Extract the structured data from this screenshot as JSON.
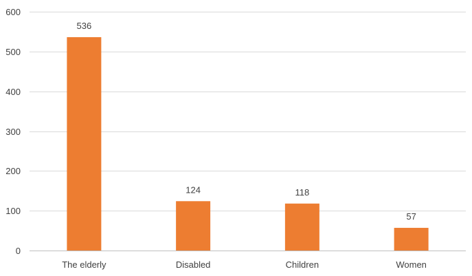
{
  "chart_data": {
    "type": "bar",
    "title": "",
    "xlabel": "",
    "ylabel": "",
    "categories": [
      "The elderly",
      "Disabled",
      "Children",
      "Women"
    ],
    "values": [
      536,
      124,
      118,
      57
    ],
    "ylim": [
      0,
      600
    ],
    "yticks": [
      0,
      100,
      200,
      300,
      400,
      500,
      600
    ],
    "grid": true,
    "legend": "none",
    "bar_color": "#ED7D31",
    "data_labels": true
  }
}
